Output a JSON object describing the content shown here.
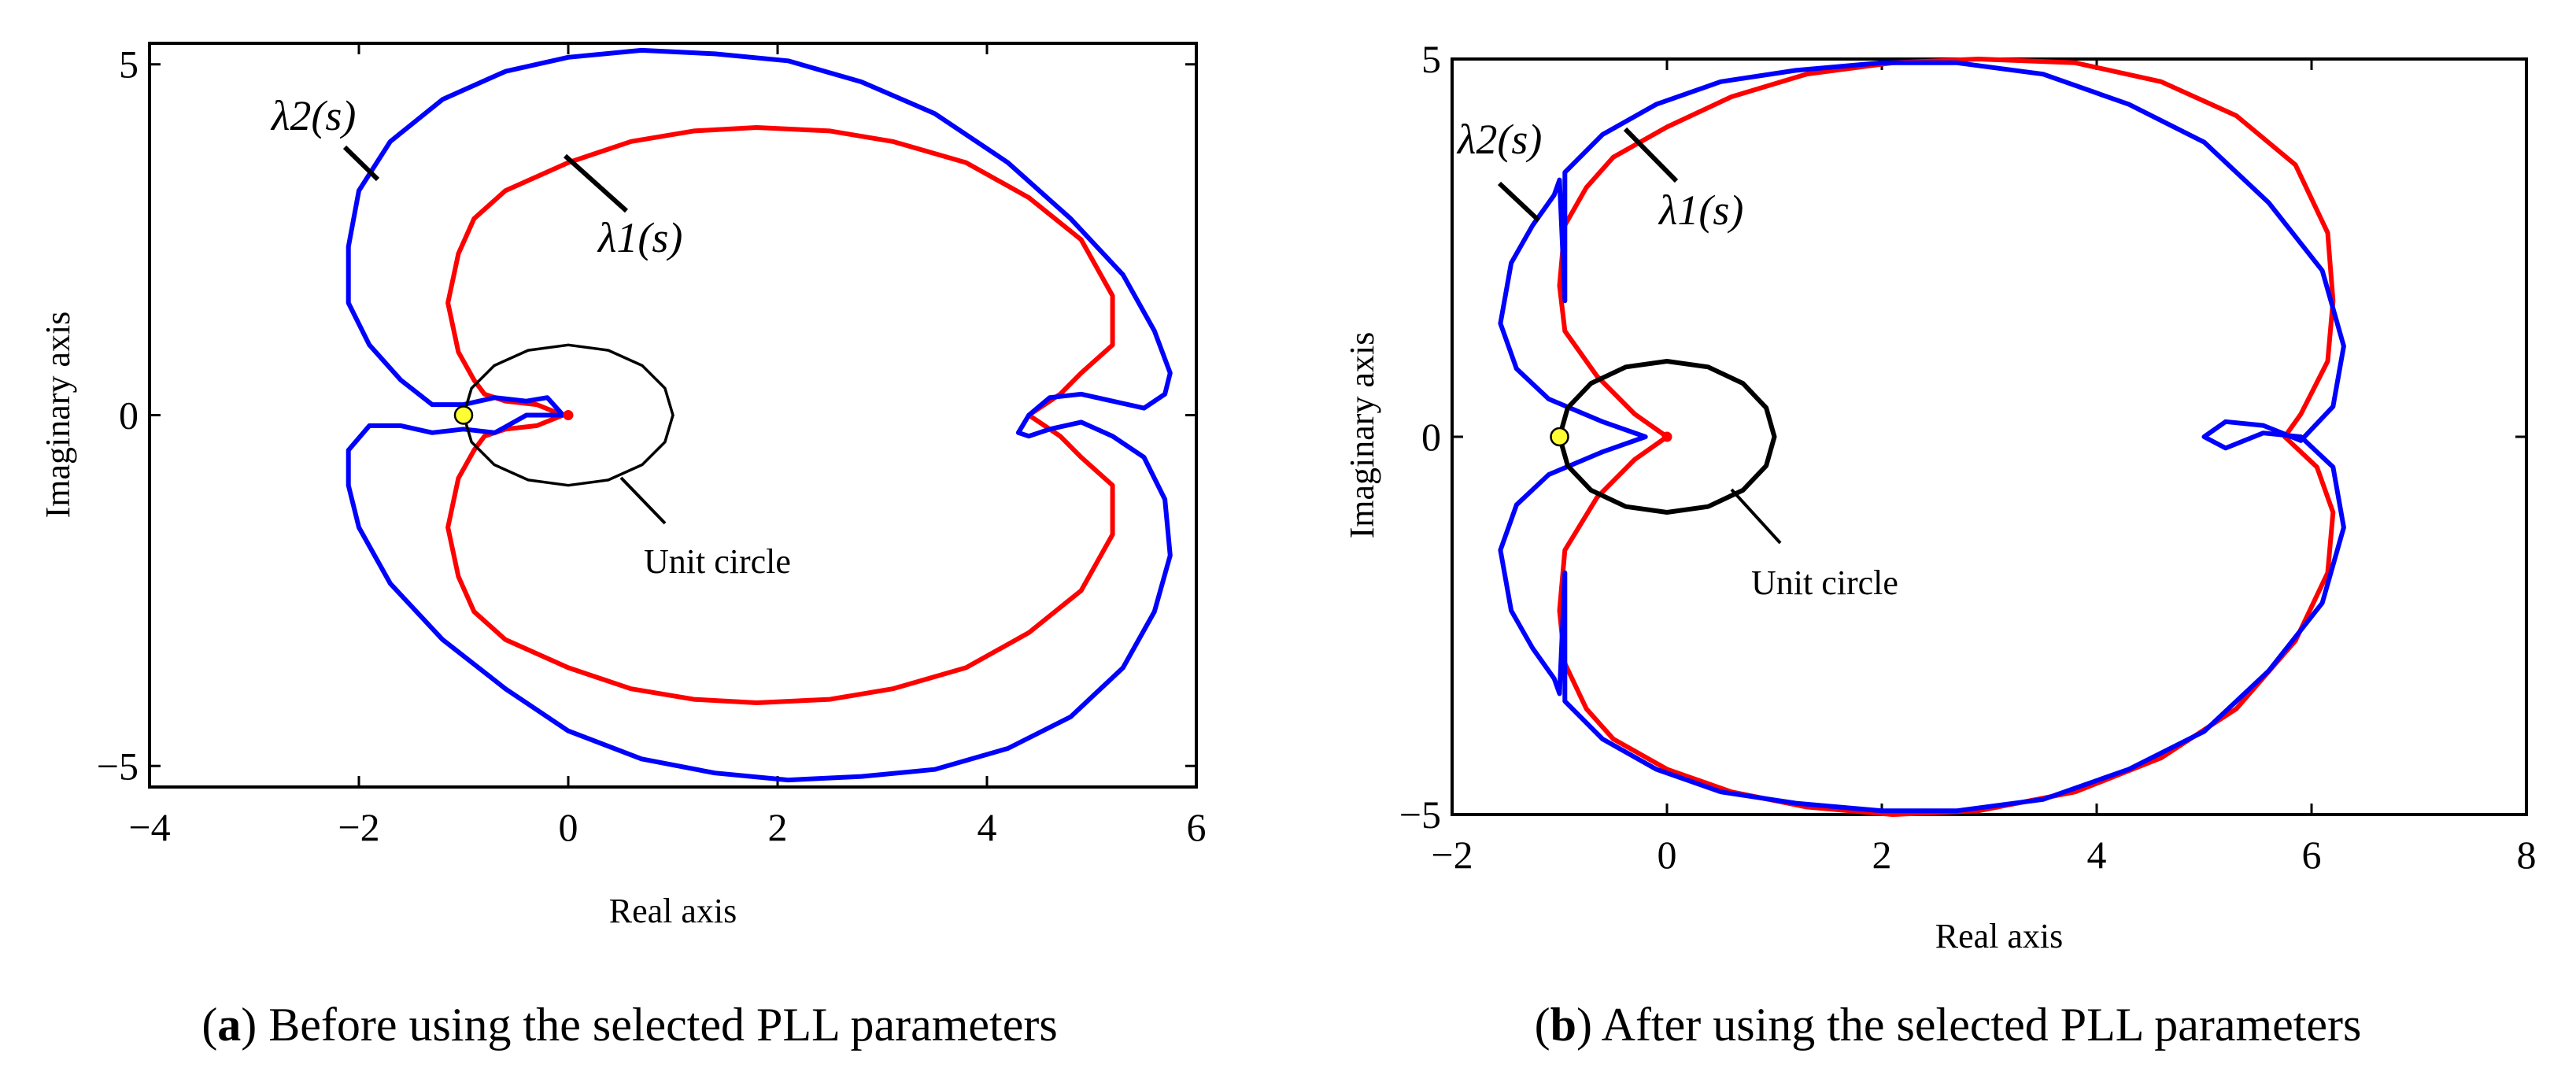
{
  "chart_data": [
    {
      "type": "line",
      "panel_label": "a",
      "caption": "Before using the selected PLL parameters",
      "xlabel": "Real axis",
      "ylabel": "Imaginary axis",
      "xlim": [
        -4,
        6
      ],
      "ylim": [
        -5.3,
        5.3
      ],
      "xticks": [
        "−4",
        "−2",
        "0",
        "2",
        "4",
        "6"
      ],
      "yticks": [
        "5",
        "0",
        "−5"
      ],
      "series": [
        {
          "name": "λ1(s)",
          "color": "#ff0000",
          "x": [
            -0.05,
            -0.3,
            -0.6,
            -0.8,
            -0.9,
            -1.05,
            -1.15,
            -1.05,
            -0.9,
            -0.9,
            -0.6,
            0.0,
            0.6,
            1.2,
            1.8,
            2.5,
            3.1,
            3.8,
            4.4,
            4.9,
            5.2,
            5.2,
            4.9,
            4.7,
            4.55,
            4.4,
            4.55,
            4.7,
            4.9,
            5.2,
            5.2,
            4.9,
            4.4,
            3.8,
            3.1,
            2.5,
            1.8,
            1.2,
            0.6,
            0.0,
            -0.6,
            -0.9,
            -0.9,
            -1.05,
            -1.15,
            -1.05,
            -0.9,
            -0.8,
            -0.6,
            -0.3,
            -0.05
          ],
          "y": [
            0.0,
            -0.15,
            -0.2,
            -0.3,
            -0.5,
            -0.9,
            -1.6,
            -2.3,
            -2.8,
            -2.8,
            -3.2,
            -3.6,
            -3.9,
            -4.05,
            -4.1,
            -4.05,
            -3.9,
            -3.6,
            -3.1,
            -2.5,
            -1.7,
            -1.0,
            -0.6,
            -0.3,
            -0.15,
            0.0,
            0.15,
            0.3,
            0.6,
            1.0,
            1.7,
            2.5,
            3.1,
            3.6,
            3.9,
            4.05,
            4.1,
            4.05,
            3.9,
            3.6,
            3.2,
            2.8,
            2.8,
            2.3,
            1.6,
            0.9,
            0.5,
            0.3,
            0.2,
            0.15,
            0.0
          ]
        },
        {
          "name": "λ2(s)",
          "color": "#0000ff",
          "x": [
            -0.05,
            -0.2,
            -0.4,
            -0.7,
            -1.0,
            -1.3,
            -1.6,
            -1.9,
            -2.1,
            -2.1,
            -2.0,
            -1.7,
            -1.2,
            -0.6,
            0.0,
            0.7,
            1.4,
            2.1,
            2.8,
            3.5,
            4.2,
            4.8,
            5.3,
            5.6,
            5.75,
            5.7,
            5.5,
            5.2,
            4.9,
            4.6,
            4.4,
            4.3,
            4.4,
            4.6,
            4.9,
            5.2,
            5.5,
            5.7,
            5.75,
            5.6,
            5.3,
            4.8,
            4.2,
            3.5,
            2.8,
            2.1,
            1.4,
            0.7,
            0.0,
            -0.6,
            -1.2,
            -1.7,
            -2.0,
            -2.1,
            -2.1,
            -1.9,
            -1.6,
            -1.3,
            -1.0,
            -0.7,
            -0.4,
            -0.2,
            -0.05
          ],
          "y": [
            0.0,
            0.25,
            0.2,
            0.25,
            0.15,
            0.15,
            0.5,
            1.0,
            1.6,
            2.4,
            3.2,
            3.9,
            4.5,
            4.9,
            5.1,
            5.2,
            5.15,
            5.05,
            4.75,
            4.3,
            3.6,
            2.8,
            2.0,
            1.2,
            0.6,
            0.3,
            0.1,
            0.2,
            0.3,
            0.25,
            0.0,
            -0.25,
            -0.3,
            -0.2,
            -0.1,
            -0.3,
            -0.6,
            -1.2,
            -2.0,
            -2.8,
            -3.6,
            -4.3,
            -4.75,
            -5.05,
            -5.15,
            -5.2,
            -5.1,
            -4.9,
            -4.5,
            -3.9,
            -3.2,
            -2.4,
            -1.6,
            -1.0,
            -0.5,
            -0.15,
            -0.15,
            -0.25,
            -0.2,
            -0.25,
            0.0,
            0.0,
            0.0
          ]
        },
        {
          "name": "Unit circle",
          "color": "#000000",
          "x": [
            1.0,
            0.924,
            0.707,
            0.383,
            0.0,
            -0.383,
            -0.707,
            -0.924,
            -1.0,
            -0.924,
            -0.707,
            -0.383,
            0.0,
            0.383,
            0.707,
            0.924,
            1.0
          ],
          "y": [
            0.0,
            0.383,
            0.707,
            0.924,
            1.0,
            0.924,
            0.707,
            0.383,
            0.0,
            -0.383,
            -0.707,
            -0.924,
            -1.0,
            -0.924,
            -0.707,
            -0.383,
            0.0
          ]
        }
      ],
      "markers": [
        {
          "x": -1,
          "y": 0,
          "color": "#ffff33"
        },
        {
          "x": 0,
          "y": 0,
          "color": "#ff0000"
        }
      ],
      "annotations": [
        "λ2(s)",
        "λ1(s)",
        "Unit circle"
      ]
    },
    {
      "type": "line",
      "panel_label": "b",
      "caption": "After using the selected PLL parameters",
      "xlabel": "Real axis",
      "ylabel": "Imaginary axis",
      "xlim": [
        -2,
        8
      ],
      "ylim": [
        -5,
        5
      ],
      "xticks": [
        "−2",
        "0",
        "2",
        "4",
        "6",
        "8"
      ],
      "yticks": [
        "5",
        "0",
        "−5"
      ],
      "series": [
        {
          "name": "λ1(s)",
          "color": "#ff0000",
          "x": [
            0.0,
            -0.3,
            -0.65,
            -0.95,
            -1.0,
            -0.95,
            -0.75,
            -0.5,
            0.0,
            0.6,
            1.3,
            2.1,
            2.9,
            3.8,
            4.6,
            5.3,
            5.85,
            6.15,
            6.2,
            6.05,
            5.75,
            5.9,
            6.15,
            6.2,
            6.15,
            5.85,
            5.3,
            4.6,
            3.8,
            2.9,
            2.1,
            1.3,
            0.6,
            0.0,
            -0.5,
            -0.75,
            -0.95,
            -1.0,
            -0.95,
            -0.65,
            -0.3,
            0.0
          ],
          "y": [
            0.0,
            -0.3,
            -0.8,
            -1.5,
            -2.3,
            -3.0,
            -3.6,
            -4.0,
            -4.4,
            -4.7,
            -4.9,
            -5.0,
            -4.95,
            -4.7,
            -4.25,
            -3.6,
            -2.7,
            -1.8,
            -1.0,
            -0.4,
            0.0,
            0.3,
            1.0,
            1.8,
            2.7,
            3.6,
            4.25,
            4.7,
            4.95,
            5.0,
            4.95,
            4.8,
            4.5,
            4.1,
            3.7,
            3.3,
            2.8,
            2.0,
            1.4,
            0.8,
            0.3,
            0.0
          ]
        },
        {
          "name": "λ2(s)",
          "color": "#0000ff",
          "x": [
            -0.2,
            -0.6,
            -1.1,
            -1.4,
            -1.55,
            -1.45,
            -1.25,
            -1.05,
            -1.0,
            -0.95,
            -0.95,
            -0.6,
            -0.1,
            0.5,
            1.2,
            2.0,
            2.7,
            3.5,
            4.3,
            5.0,
            5.6,
            6.1,
            6.3,
            6.2,
            5.9,
            5.55,
            5.2,
            5.0,
            5.2,
            5.55,
            5.9,
            6.2,
            6.3,
            6.1,
            5.6,
            5.0,
            4.3,
            3.5,
            2.7,
            2.0,
            1.2,
            0.5,
            -0.1,
            -0.6,
            -0.95,
            -0.95,
            -1.0,
            -1.05,
            -1.25,
            -1.45,
            -1.55,
            -1.4,
            -1.1,
            -0.6,
            -0.2
          ],
          "y": [
            0.0,
            -0.2,
            -0.5,
            -0.9,
            -1.5,
            -2.3,
            -2.8,
            -3.2,
            -3.4,
            -1.8,
            -3.5,
            -4.0,
            -4.4,
            -4.7,
            -4.85,
            -4.95,
            -4.95,
            -4.8,
            -4.4,
            -3.9,
            -3.1,
            -2.2,
            -1.2,
            -0.4,
            0.0,
            0.05,
            -0.15,
            0.0,
            0.2,
            0.15,
            -0.05,
            0.4,
            1.2,
            2.2,
            3.1,
            3.9,
            4.4,
            4.8,
            4.95,
            4.95,
            4.85,
            4.7,
            4.4,
            4.0,
            3.5,
            1.8,
            3.4,
            3.2,
            2.8,
            2.3,
            1.5,
            0.9,
            0.5,
            0.2,
            0.0
          ]
        },
        {
          "name": "Unit circle",
          "color": "#000000",
          "x": [
            1.0,
            0.924,
            0.707,
            0.383,
            0.0,
            -0.383,
            -0.707,
            -0.924,
            -1.0,
            -0.924,
            -0.707,
            -0.383,
            0.0,
            0.383,
            0.707,
            0.924,
            1.0
          ],
          "y": [
            0.0,
            0.383,
            0.707,
            0.924,
            1.0,
            0.924,
            0.707,
            0.383,
            0.0,
            -0.383,
            -0.707,
            -0.924,
            -1.0,
            -0.924,
            -0.707,
            -0.383,
            0.0
          ]
        }
      ],
      "markers": [
        {
          "x": -1,
          "y": 0,
          "color": "#ffff33"
        },
        {
          "x": 0,
          "y": 0,
          "color": "#ff0000"
        }
      ],
      "annotations": [
        "λ2(s)",
        "λ1(s)",
        "Unit circle"
      ]
    }
  ]
}
